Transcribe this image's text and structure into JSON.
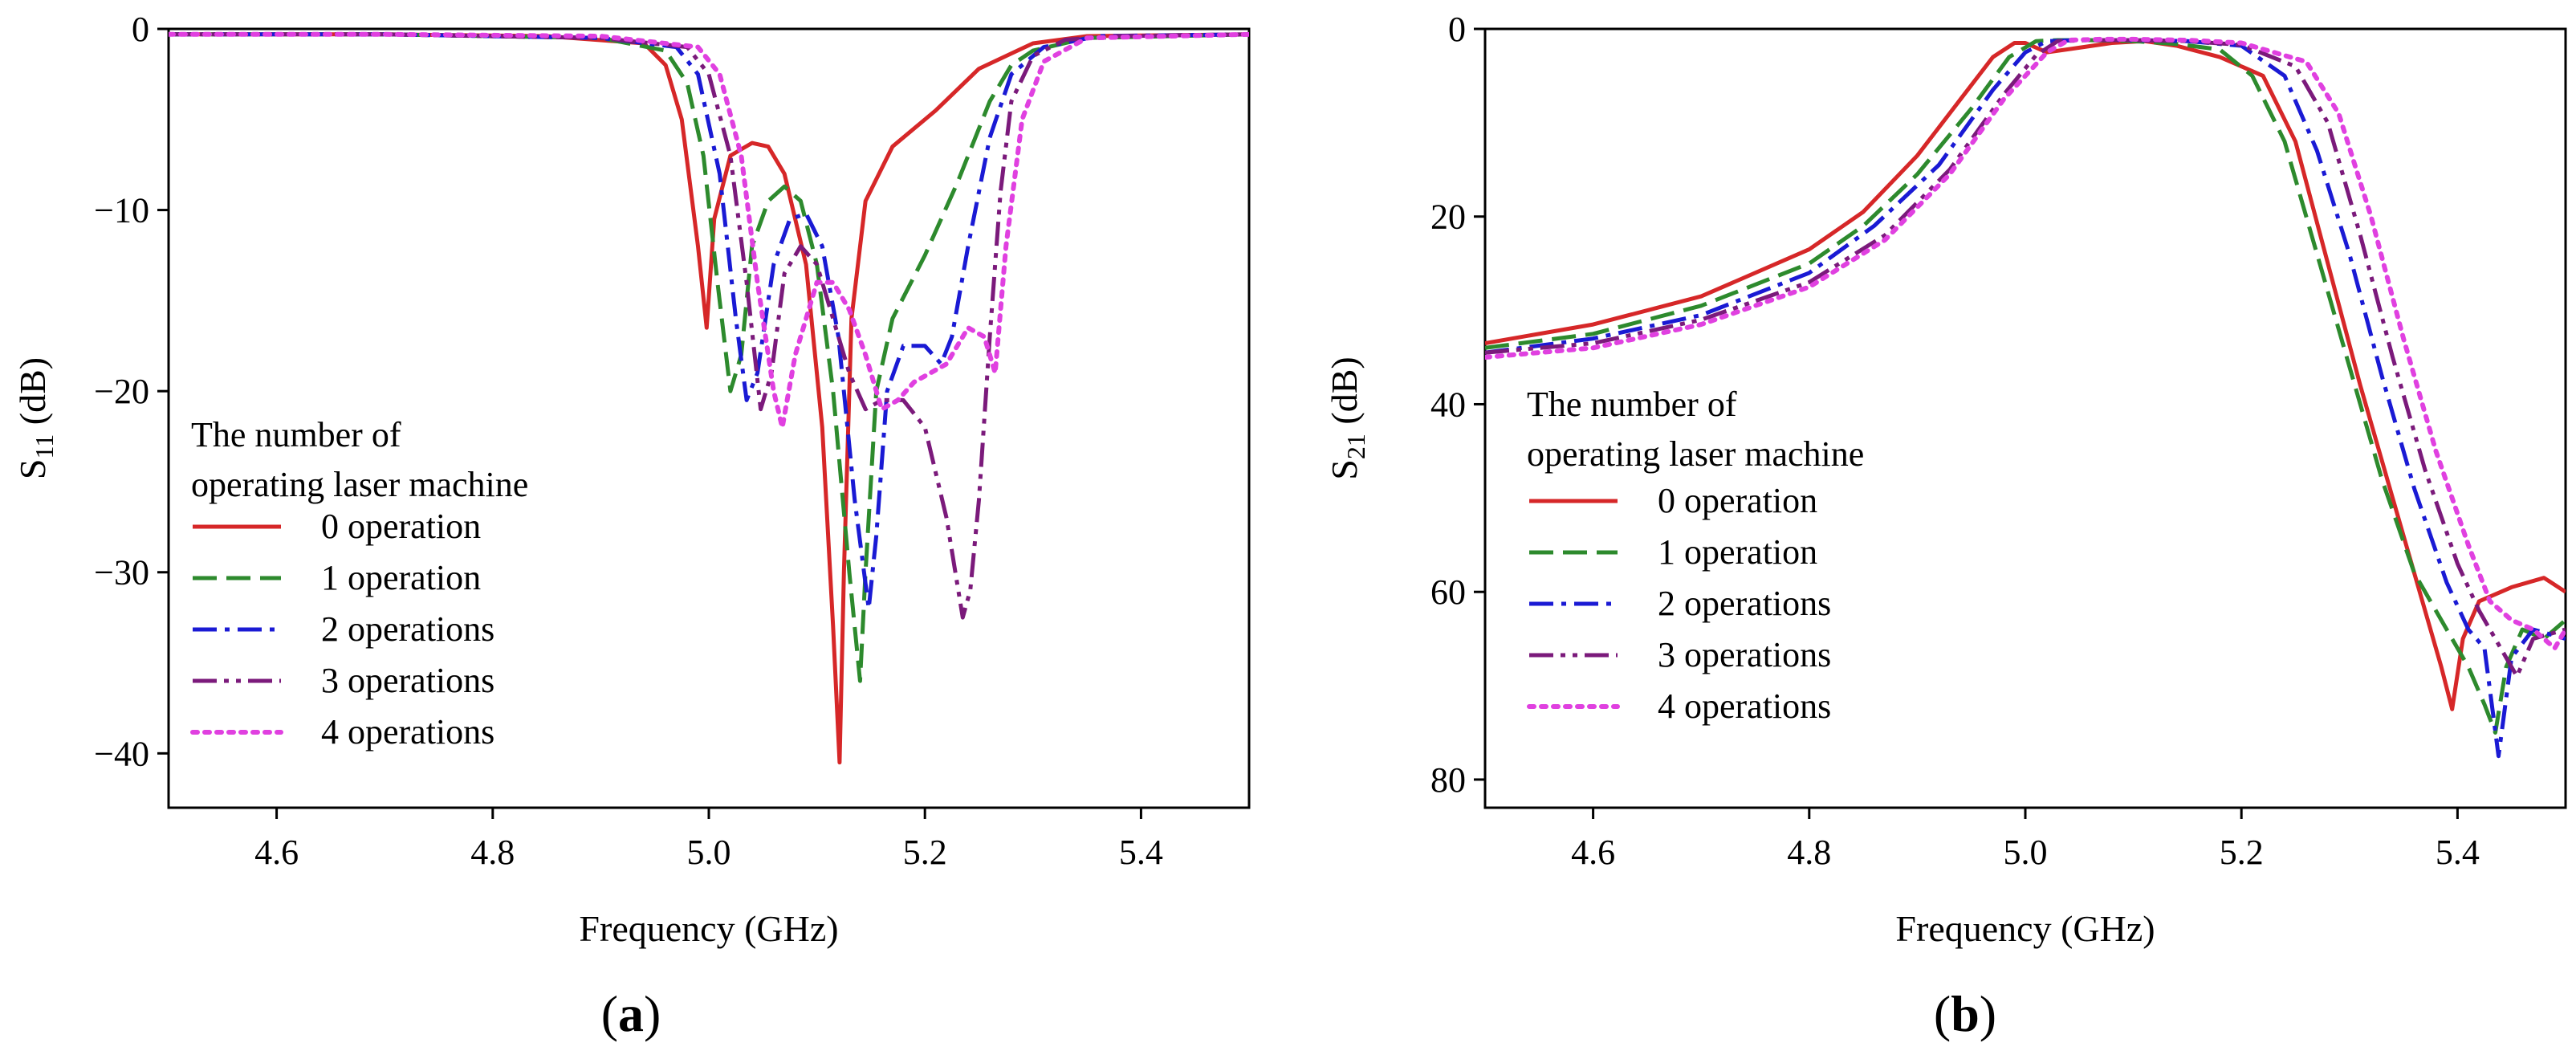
{
  "figure": {
    "panels": [
      {
        "label_open": "(",
        "label_letter": "a",
        "label_close": ")"
      },
      {
        "label_open": "(",
        "label_letter": "b",
        "label_close": ")"
      }
    ]
  },
  "chart_data": [
    {
      "type": "line",
      "xlabel": "Frequency (GHz)",
      "ylabel_main": "S",
      "ylabel_sub": "11",
      "ylabel_unit": " (dB)",
      "xlim": [
        4.5,
        5.5
      ],
      "ylim": [
        -43,
        0
      ],
      "xticks": [
        4.6,
        4.8,
        5.0,
        5.2,
        5.4
      ],
      "xtick_labels": [
        "4.6",
        "4.8",
        "5.0",
        "5.2",
        "5.4"
      ],
      "yticks": [
        0,
        -10,
        -20,
        -30,
        -40
      ],
      "ytick_labels": [
        "0",
        "−10",
        "−20",
        "−30",
        "−40"
      ],
      "legend_title": [
        "The number of",
        "operating laser machine"
      ],
      "legend_position": "lower-left",
      "grid": false,
      "series": [
        {
          "name": "0 operation",
          "color": "#d62728",
          "dash": "solid",
          "x": [
            4.5,
            4.7,
            4.85,
            4.94,
            4.96,
            4.975,
            4.99,
            4.998,
            5.005,
            5.02,
            5.04,
            5.055,
            5.07,
            5.09,
            5.105,
            5.115,
            5.121,
            5.125,
            5.132,
            5.145,
            5.17,
            5.21,
            5.25,
            5.3,
            5.35,
            5.5
          ],
          "y": [
            -0.3,
            -0.3,
            -0.4,
            -0.8,
            -2.0,
            -5,
            -12,
            -16.5,
            -10.5,
            -7.0,
            -6.3,
            -6.5,
            -8.0,
            -13,
            -22,
            -33,
            -40.5,
            -30,
            -16,
            -9.5,
            -6.5,
            -4.5,
            -2.2,
            -0.8,
            -0.4,
            -0.3
          ]
        },
        {
          "name": "1 operation",
          "color": "#2d8a2d",
          "dash": "dashed",
          "x": [
            4.5,
            4.7,
            4.9,
            4.96,
            4.98,
            4.995,
            5.008,
            5.02,
            5.03,
            5.04,
            5.055,
            5.07,
            5.085,
            5.1,
            5.115,
            5.13,
            5.14,
            5.145,
            5.155,
            5.17,
            5.2,
            5.23,
            5.26,
            5.28,
            5.3,
            5.35,
            5.5
          ],
          "y": [
            -0.3,
            -0.3,
            -0.5,
            -1.2,
            -3.0,
            -7,
            -14,
            -20,
            -18,
            -12,
            -9.5,
            -8.7,
            -9.5,
            -13,
            -20,
            -30,
            -36,
            -30,
            -20,
            -16,
            -12.5,
            -8.5,
            -4,
            -2.0,
            -1.2,
            -0.5,
            -0.3
          ]
        },
        {
          "name": "2 operations",
          "color": "#1a1ad4",
          "dash": "dashdot",
          "x": [
            4.5,
            4.7,
            4.9,
            4.97,
            4.99,
            5.01,
            5.025,
            5.035,
            5.045,
            5.06,
            5.075,
            5.09,
            5.105,
            5.12,
            5.135,
            5.148,
            5.155,
            5.165,
            5.18,
            5.2,
            5.215,
            5.225,
            5.24,
            5.26,
            5.28,
            5.31,
            5.36,
            5.5
          ],
          "y": [
            -0.3,
            -0.3,
            -0.5,
            -1.0,
            -2.5,
            -8,
            -16,
            -20.5,
            -19,
            -13,
            -10.5,
            -10.2,
            -12,
            -17,
            -26,
            -32,
            -28,
            -20,
            -17.5,
            -17.5,
            -18.5,
            -17.0,
            -12,
            -6,
            -2.5,
            -1.0,
            -0.4,
            -0.3
          ]
        },
        {
          "name": "3 operations",
          "color": "#7b1a7b",
          "dash": "dashdotdot",
          "x": [
            4.5,
            4.7,
            4.9,
            4.98,
            5.0,
            5.02,
            5.035,
            5.048,
            5.058,
            5.07,
            5.085,
            5.1,
            5.115,
            5.13,
            5.145,
            5.16,
            5.18,
            5.2,
            5.22,
            5.235,
            5.242,
            5.25,
            5.26,
            5.27,
            5.28,
            5.3,
            5.33,
            5.38,
            5.5
          ],
          "y": [
            -0.3,
            -0.3,
            -0.5,
            -1.0,
            -2.5,
            -7,
            -14,
            -21,
            -19,
            -13.5,
            -12,
            -13,
            -16,
            -19,
            -21,
            -20.5,
            -20.5,
            -22,
            -27,
            -32.5,
            -31,
            -26,
            -17,
            -9,
            -4,
            -1.5,
            -0.6,
            -0.4,
            -0.3
          ]
        },
        {
          "name": "4 operations",
          "color": "#e040e0",
          "dash": "dotted",
          "x": [
            4.5,
            4.7,
            4.9,
            4.99,
            5.01,
            5.03,
            5.045,
            5.06,
            5.068,
            5.08,
            5.1,
            5.115,
            5.13,
            5.145,
            5.16,
            5.175,
            5.19,
            5.205,
            5.22,
            5.24,
            5.255,
            5.265,
            5.275,
            5.29,
            5.31,
            5.35,
            5.5
          ],
          "y": [
            -0.3,
            -0.3,
            -0.4,
            -1.0,
            -2.5,
            -7,
            -14,
            -20,
            -22,
            -18,
            -14,
            -14,
            -15.5,
            -18,
            -21,
            -20.5,
            -19.5,
            -19,
            -18.5,
            -16.5,
            -17,
            -19,
            -12,
            -5,
            -1.8,
            -0.5,
            -0.3
          ]
        }
      ]
    },
    {
      "type": "line",
      "xlabel": "Frequency (GHz)",
      "ylabel_main": "S",
      "ylabel_sub": "21",
      "ylabel_unit": " (dB)",
      "xlim": [
        4.5,
        5.5
      ],
      "ylim": [
        -83,
        0
      ],
      "xticks": [
        4.6,
        4.8,
        5.0,
        5.2,
        5.4
      ],
      "xtick_labels": [
        "4.6",
        "4.8",
        "5.0",
        "5.2",
        "5.4"
      ],
      "yticks": [
        0,
        -20,
        -40,
        -60,
        -80
      ],
      "ytick_labels": [
        "0",
        "20",
        "40",
        "60",
        "80"
      ],
      "legend_title": [
        "The number of",
        "operating laser machine"
      ],
      "legend_position": "lower-left",
      "grid": false,
      "series": [
        {
          "name": "0 operation",
          "color": "#d62728",
          "dash": "solid",
          "x": [
            4.5,
            4.6,
            4.7,
            4.8,
            4.85,
            4.9,
            4.94,
            4.97,
            4.99,
            5.0,
            5.02,
            5.05,
            5.08,
            5.11,
            5.14,
            5.18,
            5.22,
            5.25,
            5.28,
            5.31,
            5.34,
            5.37,
            5.385,
            5.395,
            5.405,
            5.42,
            5.45,
            5.48,
            5.5
          ],
          "y": [
            -33.5,
            -31.5,
            -28.5,
            -23.5,
            -19.5,
            -13.5,
            -7.5,
            -3.0,
            -1.5,
            -1.5,
            -2.5,
            -2.0,
            -1.5,
            -1.3,
            -1.8,
            -3.0,
            -5.0,
            -12,
            -25,
            -38,
            -50,
            -62,
            -68,
            -72.5,
            -65,
            -61,
            -59.5,
            -58.5,
            -60
          ]
        },
        {
          "name": "1 operation",
          "color": "#2d8a2d",
          "dash": "dashed",
          "x": [
            4.5,
            4.6,
            4.7,
            4.8,
            4.85,
            4.9,
            4.95,
            4.985,
            5.01,
            5.03,
            5.06,
            5.1,
            5.14,
            5.18,
            5.21,
            5.24,
            5.27,
            5.3,
            5.33,
            5.36,
            5.39,
            5.41,
            5.425,
            5.435,
            5.445,
            5.46,
            5.48,
            5.5
          ],
          "y": [
            -34,
            -32.5,
            -29.5,
            -25,
            -21,
            -15.5,
            -8.5,
            -3.0,
            -1.3,
            -1.2,
            -1.2,
            -1.3,
            -1.6,
            -2.2,
            -5,
            -12,
            -24,
            -36,
            -48,
            -58,
            -64,
            -68,
            -72,
            -75,
            -68,
            -64,
            -65,
            -63
          ]
        },
        {
          "name": "2 operations",
          "color": "#1a1ad4",
          "dash": "dashdot",
          "x": [
            4.5,
            4.6,
            4.7,
            4.8,
            4.86,
            4.92,
            4.97,
            5.0,
            5.02,
            5.05,
            5.1,
            5.15,
            5.2,
            5.24,
            5.27,
            5.3,
            5.33,
            5.36,
            5.39,
            5.41,
            5.425,
            5.438,
            5.45,
            5.47,
            5.5
          ],
          "y": [
            -34.5,
            -33,
            -30.5,
            -26,
            -21,
            -14.5,
            -6.5,
            -2.5,
            -1.3,
            -1.2,
            -1.2,
            -1.3,
            -1.8,
            -5,
            -13,
            -24,
            -37,
            -49,
            -59,
            -64,
            -66,
            -77.5,
            -67,
            -64,
            -65
          ]
        },
        {
          "name": "3 operations",
          "color": "#7b1a7b",
          "dash": "dashdotdot",
          "x": [
            4.5,
            4.6,
            4.7,
            4.8,
            4.87,
            4.93,
            4.98,
            5.01,
            5.03,
            5.06,
            5.1,
            5.15,
            5.2,
            5.25,
            5.28,
            5.31,
            5.34,
            5.37,
            5.4,
            5.42,
            5.44,
            5.455,
            5.47,
            5.5
          ],
          "y": [
            -34.5,
            -33.5,
            -31,
            -27,
            -22,
            -15,
            -7,
            -2.8,
            -1.3,
            -1.2,
            -1.2,
            -1.3,
            -1.7,
            -4,
            -10,
            -22,
            -35,
            -47,
            -57,
            -62,
            -66,
            -69,
            -65,
            -64
          ]
        },
        {
          "name": "4 operations",
          "color": "#e040e0",
          "dash": "dotted",
          "x": [
            4.5,
            4.6,
            4.7,
            4.8,
            4.87,
            4.93,
            4.98,
            5.02,
            5.04,
            5.07,
            5.1,
            5.15,
            5.2,
            5.26,
            5.29,
            5.32,
            5.35,
            5.38,
            5.41,
            5.43,
            5.45,
            5.47,
            5.49,
            5.5
          ],
          "y": [
            -35,
            -34,
            -31.5,
            -27.5,
            -22.5,
            -15.5,
            -7.5,
            -2.5,
            -1.2,
            -1.1,
            -1.1,
            -1.2,
            -1.5,
            -3.5,
            -9,
            -20,
            -33,
            -45,
            -55,
            -61,
            -63,
            -64,
            -66,
            -64
          ]
        }
      ]
    }
  ]
}
